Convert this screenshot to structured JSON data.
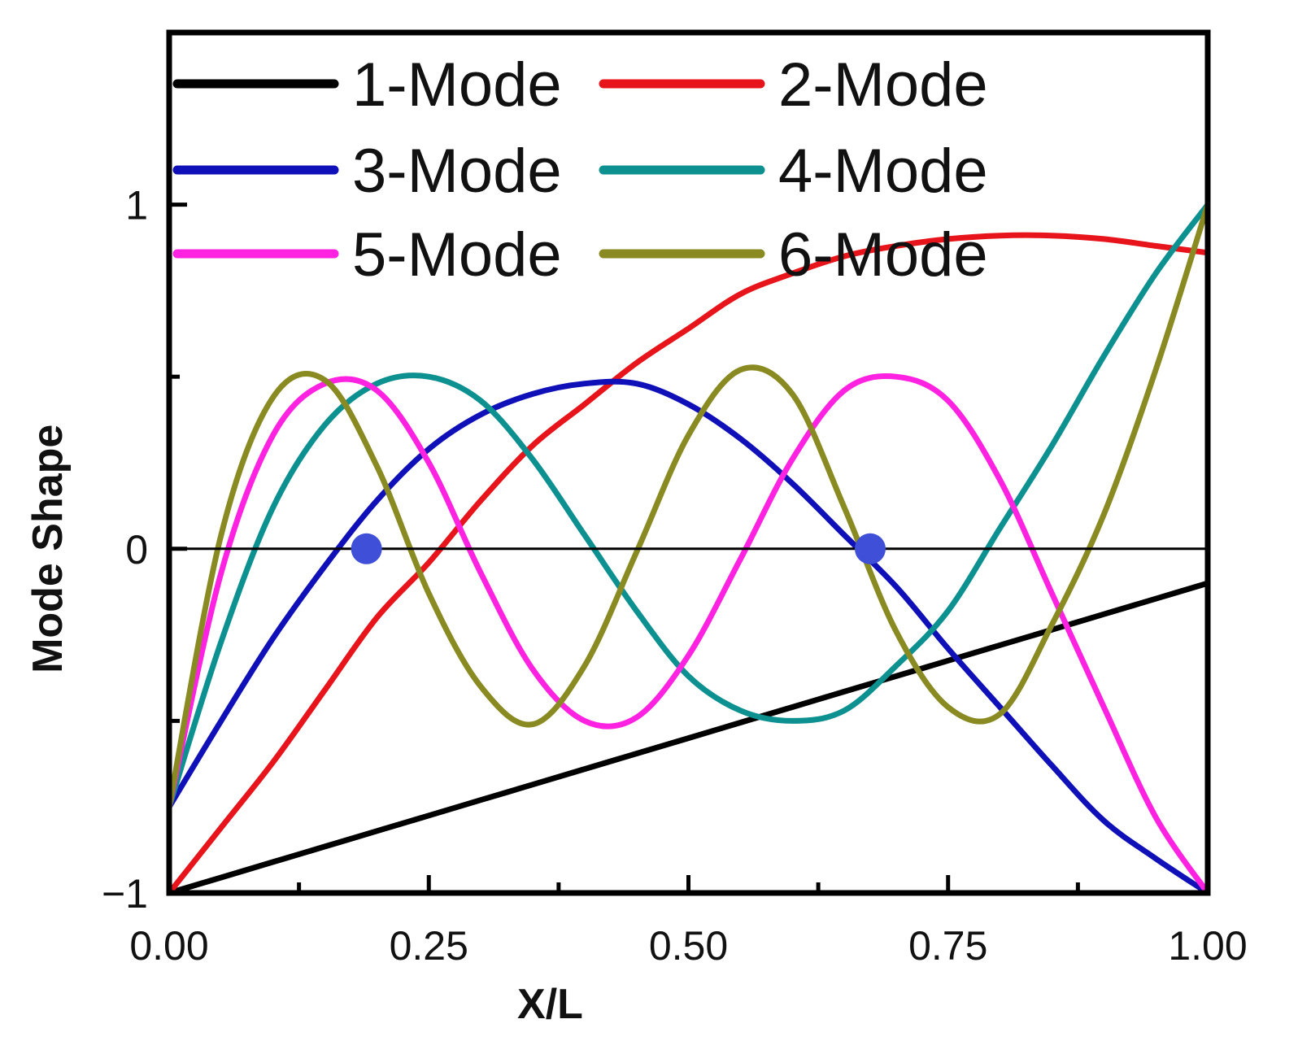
{
  "chart_data": {
    "type": "line",
    "title": "",
    "xlabel": "X/L",
    "ylabel": "Mode Shape",
    "xlim": [
      0,
      1
    ],
    "ylim": [
      -1,
      1.5
    ],
    "x_ticks": [
      {
        "value": 0,
        "label": "0.00"
      },
      {
        "value": 0.25,
        "label": "0.25"
      },
      {
        "value": 0.5,
        "label": "0.50"
      },
      {
        "value": 0.75,
        "label": "0.75"
      },
      {
        "value": 1,
        "label": "1.00"
      }
    ],
    "x_minor_ticks": [
      0.125,
      0.375,
      0.625,
      0.875
    ],
    "y_ticks": [
      {
        "value": -1,
        "label": "−1"
      },
      {
        "value": 0,
        "label": "0"
      },
      {
        "value": 1,
        "label": "1"
      }
    ],
    "y_minor_ticks": [
      -0.5,
      0.5
    ],
    "zero_line": true,
    "grid": false,
    "legend_position": "top-left",
    "x": [
      0,
      0.05,
      0.1,
      0.15,
      0.2,
      0.25,
      0.3,
      0.35,
      0.4,
      0.45,
      0.5,
      0.55,
      0.6,
      0.65,
      0.7,
      0.75,
      0.8,
      0.85,
      0.9,
      0.95,
      1
    ],
    "series": [
      {
        "name": "1-Mode",
        "color": "#000000",
        "values": [
          -1,
          -0.955,
          -0.91,
          -0.865,
          -0.82,
          -0.775,
          -0.73,
          -0.685,
          -0.64,
          -0.595,
          -0.55,
          -0.505,
          -0.46,
          -0.415,
          -0.37,
          -0.325,
          -0.28,
          -0.235,
          -0.19,
          -0.145,
          -0.1
        ]
      },
      {
        "name": "2-Mode",
        "color": "#e8141b",
        "values": [
          -1,
          -0.81,
          -0.62,
          -0.41,
          -0.2,
          -0.04,
          0.14,
          0.3,
          0.42,
          0.54,
          0.64,
          0.74,
          0.8,
          0.85,
          0.88,
          0.9,
          0.91,
          0.91,
          0.9,
          0.88,
          0.86
        ]
      },
      {
        "name": "3-Mode",
        "color": "#1010b8",
        "values": [
          -0.75,
          -0.5,
          -0.26,
          -0.05,
          0.14,
          0.29,
          0.39,
          0.45,
          0.48,
          0.48,
          0.42,
          0.32,
          0.19,
          0.04,
          -0.11,
          -0.29,
          -0.46,
          -0.63,
          -0.79,
          -0.9,
          -1
        ]
      },
      {
        "name": "4-Mode",
        "color": "#0c9090",
        "values": [
          -0.75,
          -0.27,
          0.12,
          0.36,
          0.48,
          0.5,
          0.43,
          0.26,
          0.04,
          -0.18,
          -0.37,
          -0.47,
          -0.5,
          -0.47,
          -0.34,
          -0.18,
          0.06,
          0.3,
          0.56,
          0.8,
          1
        ]
      },
      {
        "name": "5-Mode",
        "color": "#ff22e0",
        "values": [
          -0.75,
          -0.07,
          0.33,
          0.48,
          0.46,
          0.25,
          -0.07,
          -0.35,
          -0.5,
          -0.49,
          -0.31,
          -0.03,
          0.26,
          0.46,
          0.5,
          0.43,
          0.2,
          -0.13,
          -0.46,
          -0.78,
          -1
        ]
      },
      {
        "name": "6-Mode",
        "color": "#8a8a22",
        "values": [
          -0.75,
          0.04,
          0.44,
          0.49,
          0.24,
          -0.13,
          -0.4,
          -0.51,
          -0.34,
          -0.01,
          0.33,
          0.52,
          0.45,
          0.12,
          -0.24,
          -0.46,
          -0.48,
          -0.22,
          0.1,
          0.52,
          1
        ]
      }
    ],
    "highlight_points": [
      {
        "x": 0.19,
        "y": 0,
        "color": "#3f4fd8"
      },
      {
        "x": 0.675,
        "y": 0,
        "color": "#3f4fd8"
      }
    ]
  }
}
